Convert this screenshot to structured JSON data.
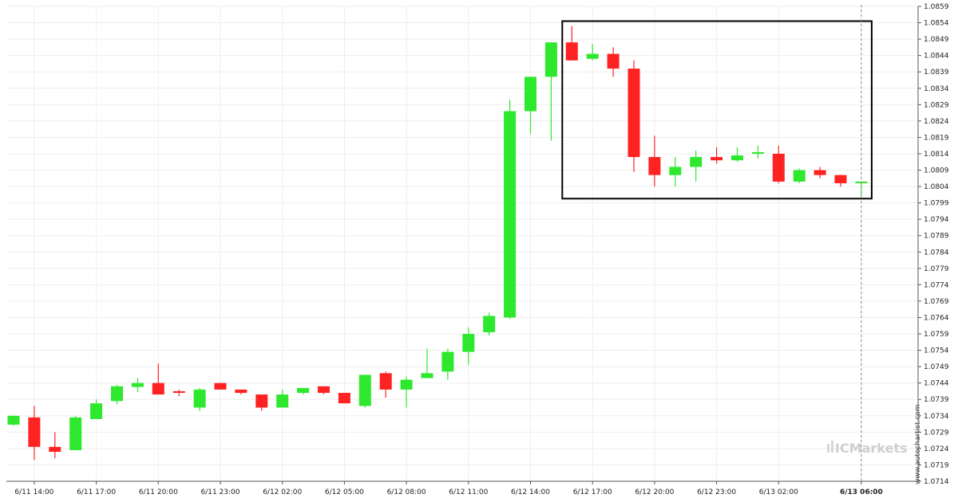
{
  "chart_data": {
    "type": "candlestick",
    "xlabel": "",
    "ylabel": "",
    "ylim": [
      1.0714,
      1.0859
    ],
    "grid": true,
    "colors": {
      "up": "#2ee82e",
      "down": "#ff2222",
      "box": "#000000",
      "grid": "#eeeeee",
      "axis": "#555555",
      "current": "#888888"
    },
    "y_ticks": [
      "1.0859",
      "1.0854",
      "1.0849",
      "1.0844",
      "1.0839",
      "1.0834",
      "1.0829",
      "1.0824",
      "1.0819",
      "1.0814",
      "1.0809",
      "1.0804",
      "1.0799",
      "1.0794",
      "1.0789",
      "1.0784",
      "1.0779",
      "1.0774",
      "1.0769",
      "1.0764",
      "1.0759",
      "1.0754",
      "1.0749",
      "1.0744",
      "1.0739",
      "1.0734",
      "1.0729",
      "1.0724",
      "1.0719",
      "1.0714"
    ],
    "x_ticks": [
      {
        "label": "6/11 14:00",
        "index": 1
      },
      {
        "label": "6/11 17:00",
        "index": 4
      },
      {
        "label": "6/11 20:00",
        "index": 7
      },
      {
        "label": "6/11 23:00",
        "index": 10
      },
      {
        "label": "6/12 02:00",
        "index": 13
      },
      {
        "label": "6/12 05:00",
        "index": 16
      },
      {
        "label": "6/12 08:00",
        "index": 19
      },
      {
        "label": "6/12 11:00",
        "index": 22
      },
      {
        "label": "6/12 14:00",
        "index": 25
      },
      {
        "label": "6/12 17:00",
        "index": 28
      },
      {
        "label": "6/12 20:00",
        "index": 31
      },
      {
        "label": "6/12 23:00",
        "index": 34
      },
      {
        "label": "6/13 02:00",
        "index": 37
      },
      {
        "label": "6/13 06:00",
        "index": 41,
        "bold": true
      }
    ],
    "candles": [
      {
        "o": 1.07313,
        "h": 1.0734,
        "l": 1.0731,
        "c": 1.0734
      },
      {
        "o": 1.07335,
        "h": 1.0737,
        "l": 1.07205,
        "c": 1.07245
      },
      {
        "o": 1.07245,
        "h": 1.0729,
        "l": 1.0721,
        "c": 1.0723
      },
      {
        "o": 1.07235,
        "h": 1.0734,
        "l": 1.07235,
        "c": 1.07335
      },
      {
        "o": 1.0733,
        "h": 1.0739,
        "l": 1.0733,
        "c": 1.07378
      },
      {
        "o": 1.07385,
        "h": 1.07435,
        "l": 1.07375,
        "c": 1.0743
      },
      {
        "o": 1.07428,
        "h": 1.07455,
        "l": 1.07412,
        "c": 1.0744
      },
      {
        "o": 1.0744,
        "h": 1.075,
        "l": 1.07405,
        "c": 1.07405
      },
      {
        "o": 1.07415,
        "h": 1.0742,
        "l": 1.074,
        "c": 1.0741
      },
      {
        "o": 1.07365,
        "h": 1.07425,
        "l": 1.07355,
        "c": 1.0742
      },
      {
        "o": 1.0744,
        "h": 1.0744,
        "l": 1.0742,
        "c": 1.0742
      },
      {
        "o": 1.0742,
        "h": 1.0742,
        "l": 1.07405,
        "c": 1.0741
      },
      {
        "o": 1.07405,
        "h": 1.07405,
        "l": 1.07355,
        "c": 1.07365
      },
      {
        "o": 1.07365,
        "h": 1.0742,
        "l": 1.07365,
        "c": 1.07405
      },
      {
        "o": 1.0741,
        "h": 1.07425,
        "l": 1.07405,
        "c": 1.07425
      },
      {
        "o": 1.0743,
        "h": 1.0743,
        "l": 1.07405,
        "c": 1.0741
      },
      {
        "o": 1.0741,
        "h": 1.0741,
        "l": 1.07378,
        "c": 1.07378
      },
      {
        "o": 1.0737,
        "h": 1.07465,
        "l": 1.07365,
        "c": 1.07465
      },
      {
        "o": 1.0747,
        "h": 1.07475,
        "l": 1.07395,
        "c": 1.0742
      },
      {
        "o": 1.0742,
        "h": 1.0746,
        "l": 1.07365,
        "c": 1.0745
      },
      {
        "o": 1.07455,
        "h": 1.07545,
        "l": 1.07455,
        "c": 1.0747
      },
      {
        "o": 1.07475,
        "h": 1.07545,
        "l": 1.0745,
        "c": 1.07535
      },
      {
        "o": 1.07535,
        "h": 1.0761,
        "l": 1.07495,
        "c": 1.0759
      },
      {
        "o": 1.07595,
        "h": 1.07655,
        "l": 1.07585,
        "c": 1.07645
      },
      {
        "o": 1.0764,
        "h": 1.08305,
        "l": 1.07635,
        "c": 1.0827
      },
      {
        "o": 1.0827,
        "h": 1.08375,
        "l": 1.082,
        "c": 1.08375
      },
      {
        "o": 1.08375,
        "h": 1.0848,
        "l": 1.0818,
        "c": 1.0848
      },
      {
        "o": 1.0848,
        "h": 1.0853,
        "l": 1.08425,
        "c": 1.08425
      },
      {
        "o": 1.0843,
        "h": 1.08475,
        "l": 1.08425,
        "c": 1.08445
      },
      {
        "o": 1.08445,
        "h": 1.08465,
        "l": 1.08375,
        "c": 1.084
      },
      {
        "o": 1.084,
        "h": 1.08425,
        "l": 1.08085,
        "c": 1.0813
      },
      {
        "o": 1.0813,
        "h": 1.08195,
        "l": 1.0804,
        "c": 1.08075
      },
      {
        "o": 1.08075,
        "h": 1.0813,
        "l": 1.0804,
        "c": 1.081
      },
      {
        "o": 1.081,
        "h": 1.0815,
        "l": 1.08055,
        "c": 1.0813
      },
      {
        "o": 1.0813,
        "h": 1.0816,
        "l": 1.0811,
        "c": 1.0812
      },
      {
        "o": 1.0812,
        "h": 1.0816,
        "l": 1.08115,
        "c": 1.08135
      },
      {
        "o": 1.0814,
        "h": 1.08165,
        "l": 1.08125,
        "c": 1.08145
      },
      {
        "o": 1.0814,
        "h": 1.08165,
        "l": 1.0805,
        "c": 1.08055
      },
      {
        "o": 1.08055,
        "h": 1.08095,
        "l": 1.0805,
        "c": 1.0809
      },
      {
        "o": 1.0809,
        "h": 1.081,
        "l": 1.08065,
        "c": 1.08075
      },
      {
        "o": 1.08075,
        "h": 1.08075,
        "l": 1.0804,
        "c": 1.0805
      },
      {
        "o": 1.0805,
        "h": 1.08055,
        "l": 1.08005,
        "c": 1.08055
      }
    ],
    "highlight_box": {
      "start_index": 27,
      "end_index": 41,
      "high": 1.08545,
      "low": 1.08003
    },
    "current_index": 41
  },
  "watermark": "www.autochartist.com",
  "logo": "ICMarkets"
}
